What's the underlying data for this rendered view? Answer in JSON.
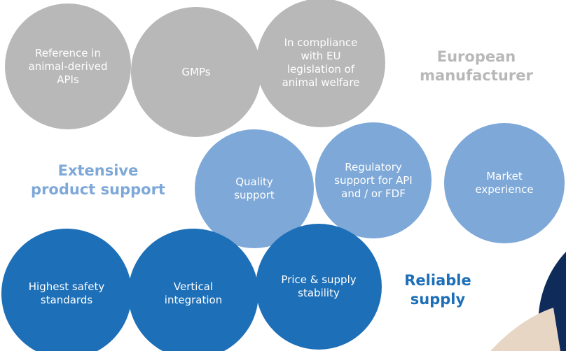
{
  "groups": [
    {
      "title": [
        "European",
        "manufacturer"
      ],
      "items": [
        [
          "Reference in",
          "animal-derived",
          "APIs"
        ],
        [
          "GMPs"
        ],
        [
          "In compliance",
          "with EU",
          "legislation of",
          "animal welfare"
        ]
      ]
    },
    {
      "title": [
        "Extensive",
        "product support"
      ],
      "items": [
        [
          "Quality",
          "support"
        ],
        [
          "Regulatory",
          "support for API",
          "and / or FDF"
        ],
        [
          "Market",
          "experience"
        ]
      ]
    },
    {
      "title": [
        "Reliable",
        "supply"
      ],
      "items": [
        [
          "Highest safety",
          "standards"
        ],
        [
          "Vertical",
          "integration"
        ],
        [
          "Price & supply",
          "stability"
        ]
      ]
    }
  ]
}
